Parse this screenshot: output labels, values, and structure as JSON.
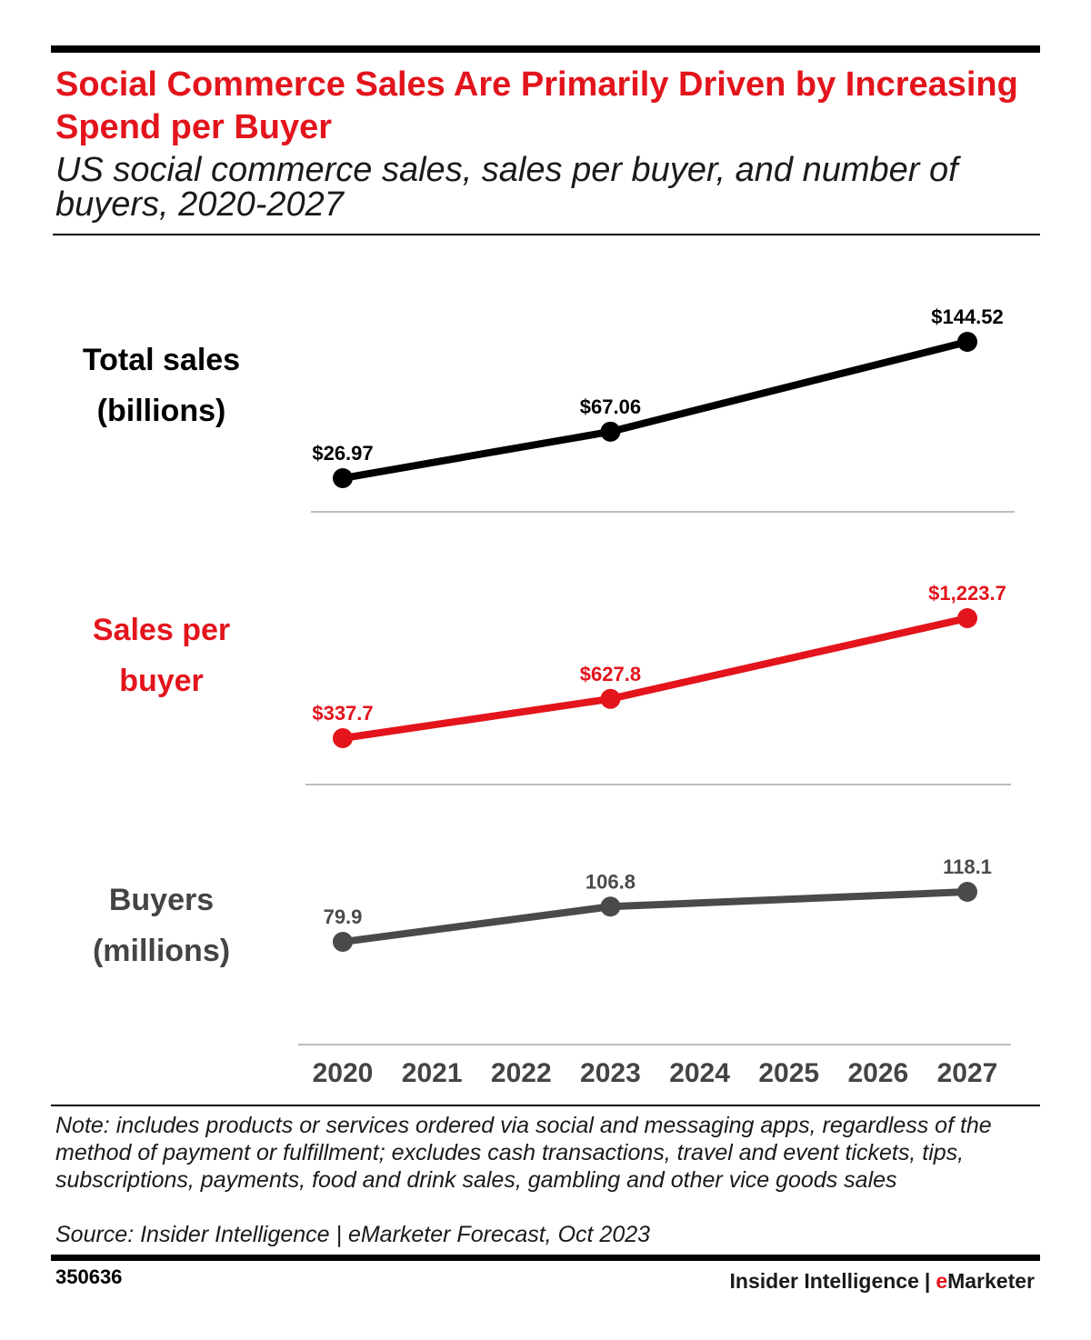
{
  "header": {
    "title": "Social Commerce Sales Are Primarily Driven by Increasing Spend per Buyer",
    "subtitle": "US social commerce sales, sales per buyer, and number of buyers, 2020-2027"
  },
  "chart_data": {
    "type": "line",
    "categories": [
      "2020",
      "2021",
      "2022",
      "2023",
      "2024",
      "2025",
      "2026",
      "2027"
    ],
    "panels": [
      {
        "name": "Total sales",
        "label_lines": [
          "Total sales",
          "(billions)"
        ],
        "color": "#000000",
        "points": [
          {
            "x": "2020",
            "y": 26.97,
            "label": "$26.97"
          },
          {
            "x": "2023",
            "y": 67.06,
            "label": "$67.06"
          },
          {
            "x": "2027",
            "y": 144.52,
            "label": "$144.52"
          }
        ]
      },
      {
        "name": "Sales per buyer",
        "label_lines": [
          "Sales per",
          "buyer"
        ],
        "color": "#e3141c",
        "points": [
          {
            "x": "2020",
            "y": 337.7,
            "label": "$337.7"
          },
          {
            "x": "2023",
            "y": 627.8,
            "label": "$627.8"
          },
          {
            "x": "2027",
            "y": 1223.7,
            "label": "$1,223.7"
          }
        ]
      },
      {
        "name": "Buyers",
        "label_lines": [
          "Buyers",
          "(millions)"
        ],
        "color": "#4a4a4a",
        "points": [
          {
            "x": "2020",
            "y": 79.9,
            "label": "79.9"
          },
          {
            "x": "2023",
            "y": 106.8,
            "label": "106.8"
          },
          {
            "x": "2027",
            "y": 118.1,
            "label": "118.1"
          }
        ]
      }
    ]
  },
  "footer": {
    "note": "Note: includes products or services ordered via social and messaging apps, regardless of the method of payment or fulfillment; excludes cash transactions, travel and event tickets, tips, subscriptions, payments, food and drink sales, gambling and other vice goods sales",
    "source": "Source: Insider Intelligence | eMarketer Forecast, Oct 2023",
    "chart_id": "350636",
    "brand_left": "Insider Intelligence",
    "brand_sep": "|",
    "brand_e": "e",
    "brand_rest": "Marketer"
  }
}
